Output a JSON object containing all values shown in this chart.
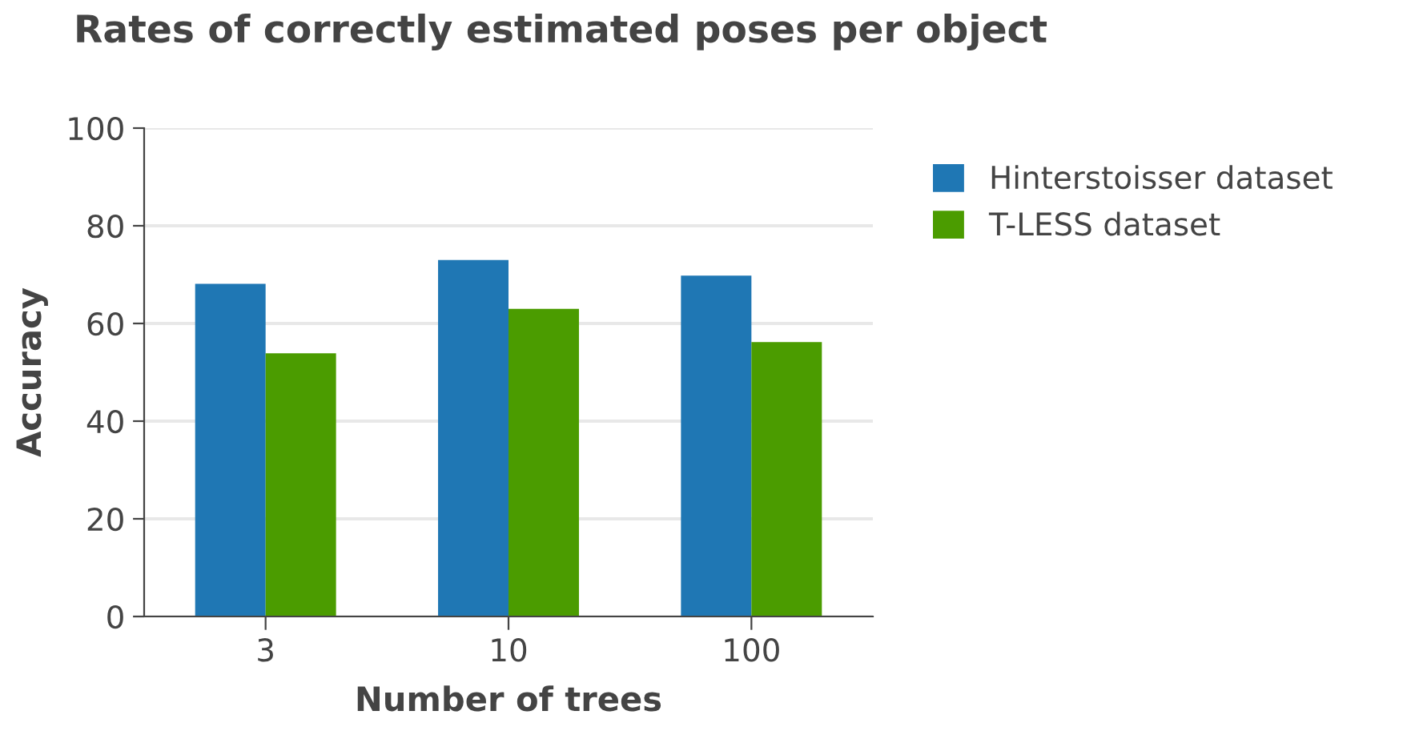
{
  "chart_data": {
    "type": "bar",
    "title": "Rates of correctly estimated poses per object",
    "xlabel": "Number of trees",
    "ylabel": "Accuracy",
    "categories": [
      "3",
      "10",
      "100"
    ],
    "series": [
      {
        "name": "Hinterstoisser dataset",
        "color": "#1f77b4",
        "values": [
          68.1,
          73.0,
          69.8
        ]
      },
      {
        "name": "T-LESS dataset",
        "color": "#4b9c00",
        "values": [
          53.9,
          63.0,
          56.2
        ]
      }
    ],
    "ylim": [
      0,
      100
    ],
    "yticks": [
      0,
      20,
      40,
      60,
      80,
      100
    ],
    "grid": "y",
    "legend": "top right"
  }
}
